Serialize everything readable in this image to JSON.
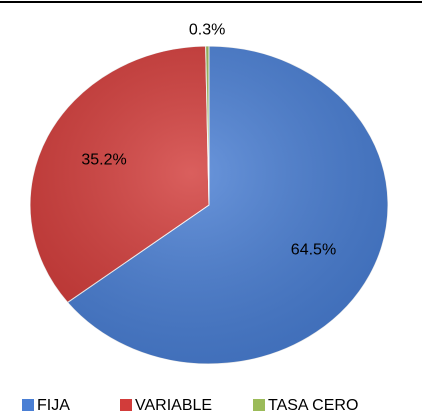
{
  "chart_data": {
    "type": "pie",
    "categories": [
      "FIJA",
      "VARIABLE",
      "TASA CERO"
    ],
    "values": [
      64.5,
      35.2,
      0.3
    ],
    "value_labels": [
      "64.5%",
      "35.2%",
      "0.3%"
    ],
    "colors": [
      "#4a7fd4",
      "#d23c3a",
      "#9bbb59"
    ],
    "legend": "bottom"
  }
}
